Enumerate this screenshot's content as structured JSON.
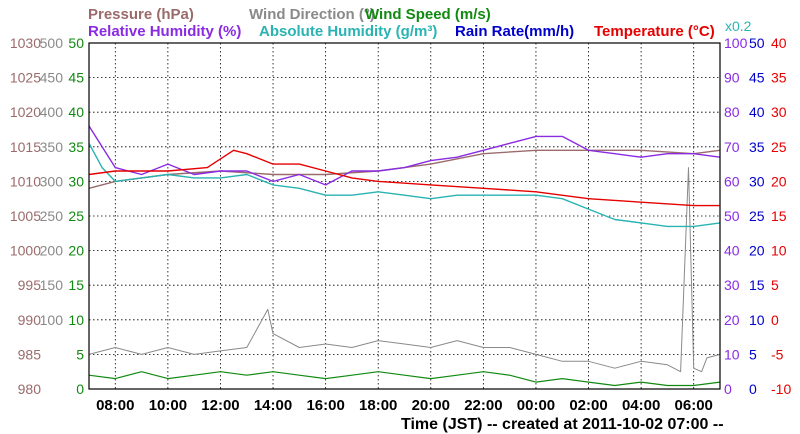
{
  "colors": {
    "pressure": "#9b6b6b",
    "wind_direction": "#8a8a8a",
    "wind_speed": "#128a12",
    "relative_humidity": "#8a2be2",
    "absolute_humidity": "#2ab3b3",
    "rain_rate": "#0000cc",
    "temperature": "#e60000",
    "plot_border": "#000000",
    "grid": "#000000"
  },
  "chart_data": {
    "type": "line",
    "grid": "on (dotted)",
    "legend_placement": "top, two rows",
    "legend": [
      [
        {
          "key": "pressure",
          "label": "Pressure (hPa)",
          "color": "#9b6b6b"
        },
        {
          "key": "wind_direction",
          "label": "Wind Direction (°)",
          "color": "#8a8a8a"
        },
        {
          "key": "wind_speed",
          "label": "Wind Speed (m/s)",
          "color": "#128a12"
        }
      ],
      [
        {
          "key": "relative_humidity",
          "label": "Relative Humidity (%)",
          "color": "#8a2be2"
        },
        {
          "key": "absolute_humidity",
          "label": "Absolute Humidity (g/m³)",
          "color": "#2ab3b3"
        },
        {
          "key": "rain_rate",
          "label": "Rain Rate(mm/h)",
          "color": "#0000cc"
        },
        {
          "key": "temperature",
          "label": "Temperature (°C)",
          "color": "#e60000"
        }
      ]
    ],
    "x_axis": {
      "label": "Time (JST) -- created at 2011-10-02 07:00 --",
      "ticks": [
        "08:00",
        "10:00",
        "12:00",
        "14:00",
        "16:00",
        "18:00",
        "20:00",
        "22:00",
        "00:00",
        "02:00",
        "04:00",
        "06:00"
      ],
      "range_hours": [
        7,
        31
      ]
    },
    "y_axes": [
      {
        "key": "pressure",
        "side": "left",
        "color": "#9b6b6b",
        "range": [
          980,
          1030
        ],
        "ticks": [
          1030,
          1025,
          1020,
          1015,
          1010,
          1005,
          1000,
          995,
          990,
          985,
          980
        ]
      },
      {
        "key": "wind_direction",
        "side": "left",
        "color": "#8a8a8a",
        "range": [
          0,
          500
        ],
        "ticks": [
          500,
          450,
          400,
          350,
          300,
          250,
          200,
          150,
          100,
          50,
          0
        ],
        "hide_below": 100
      },
      {
        "key": "wind_speed",
        "side": "left",
        "color": "#128a12",
        "range": [
          0,
          50
        ],
        "ticks": [
          50,
          45,
          40,
          35,
          30,
          25,
          20,
          15,
          10,
          5,
          0
        ]
      },
      {
        "key": "relative_humidity",
        "side": "right",
        "color": "#8a2be2",
        "range": [
          0,
          100
        ],
        "ticks": [
          100,
          90,
          80,
          70,
          60,
          50,
          40,
          30,
          20,
          10,
          0
        ]
      },
      {
        "key": "rain_rate",
        "side": "right",
        "color": "#0000cc",
        "range": [
          0,
          50
        ],
        "ticks": [
          50,
          45,
          40,
          35,
          30,
          25,
          20,
          15,
          10,
          5,
          0
        ]
      },
      {
        "key": "temperature",
        "side": "right",
        "color": "#e60000",
        "range": [
          -10,
          40
        ],
        "ticks": [
          40,
          35,
          30,
          25,
          20,
          15,
          10,
          5,
          0,
          -5,
          -10
        ]
      }
    ],
    "right_axis_note": "x0.2",
    "series": [
      {
        "name": "Pressure (hPa)",
        "key": "pressure",
        "axis": "pressure",
        "x": [
          7,
          8,
          10,
          12,
          14,
          16,
          18,
          20,
          22,
          24,
          26,
          28,
          30,
          31
        ],
        "y": [
          1009,
          1010,
          1011,
          1011.5,
          1011,
          1011,
          1011.5,
          1012.5,
          1014,
          1014.5,
          1014.5,
          1014.5,
          1014,
          1014.5
        ]
      },
      {
        "name": "Wind Direction (°)",
        "key": "wind_direction",
        "axis": "wind_direction",
        "x": [
          7,
          8,
          9,
          10,
          11,
          12,
          13,
          13.8,
          14,
          15,
          16,
          17,
          18,
          19,
          20,
          21,
          22,
          23,
          24,
          25,
          26,
          27,
          28,
          29,
          29.5,
          29.8,
          30,
          30.3,
          30.5,
          31
        ],
        "y": [
          50,
          60,
          50,
          60,
          50,
          55,
          60,
          115,
          80,
          60,
          65,
          60,
          70,
          65,
          60,
          70,
          60,
          60,
          50,
          40,
          40,
          30,
          40,
          35,
          25,
          320,
          30,
          25,
          45,
          50
        ]
      },
      {
        "name": "Wind Speed (m/s)",
        "key": "wind_speed",
        "axis": "wind_speed",
        "x": [
          7,
          8,
          9,
          10,
          11,
          12,
          13,
          14,
          15,
          16,
          17,
          18,
          19,
          20,
          21,
          22,
          23,
          24,
          25,
          26,
          27,
          28,
          29,
          30,
          31
        ],
        "y": [
          2,
          1.5,
          2.5,
          1.5,
          2,
          2.5,
          2,
          2.5,
          2,
          1.5,
          2,
          2.5,
          2,
          1.5,
          2,
          2.5,
          2,
          1,
          1.5,
          1,
          0.5,
          1,
          0.5,
          0.5,
          1
        ]
      },
      {
        "name": "Relative Humidity (%)",
        "key": "relative_humidity",
        "axis": "relative_humidity",
        "x": [
          7,
          7.5,
          8,
          9,
          10,
          11,
          12,
          13,
          14,
          15,
          16,
          17,
          18,
          19,
          20,
          21,
          22,
          23,
          24,
          25,
          26,
          27,
          28,
          29,
          30,
          31
        ],
        "y": [
          76,
          70,
          64,
          62,
          65,
          62,
          63,
          63,
          60,
          62,
          59,
          63,
          63,
          64,
          66,
          67,
          69,
          71,
          73,
          73,
          69,
          68,
          67,
          68,
          68,
          67
        ]
      },
      {
        "name": "Absolute Humidity (g/m³)",
        "key": "absolute_humidity",
        "axis": "relative_humidity",
        "x": [
          7,
          7.5,
          8,
          9,
          10,
          11,
          12,
          13,
          14,
          15,
          16,
          17,
          18,
          19,
          20,
          21,
          22,
          23,
          24,
          25,
          26,
          27,
          28,
          29,
          30,
          31
        ],
        "y": [
          71,
          64,
          60,
          61,
          62,
          61,
          61,
          62,
          59,
          58,
          56,
          56,
          57,
          56,
          55,
          56,
          56,
          56,
          56,
          55,
          52,
          49,
          48,
          47,
          47,
          48
        ]
      },
      {
        "name": "Temperature (°C)",
        "key": "temperature",
        "axis": "temperature",
        "x": [
          7,
          8,
          10,
          11.5,
          12.5,
          13,
          14,
          15,
          16,
          17,
          18,
          20,
          22,
          24,
          26,
          28,
          30,
          31
        ],
        "y": [
          21,
          21.5,
          21.5,
          22,
          24.5,
          24,
          22.5,
          22.5,
          21.5,
          20.5,
          20,
          19.5,
          19,
          18.5,
          17.5,
          17,
          16.5,
          16.5
        ]
      }
    ]
  }
}
